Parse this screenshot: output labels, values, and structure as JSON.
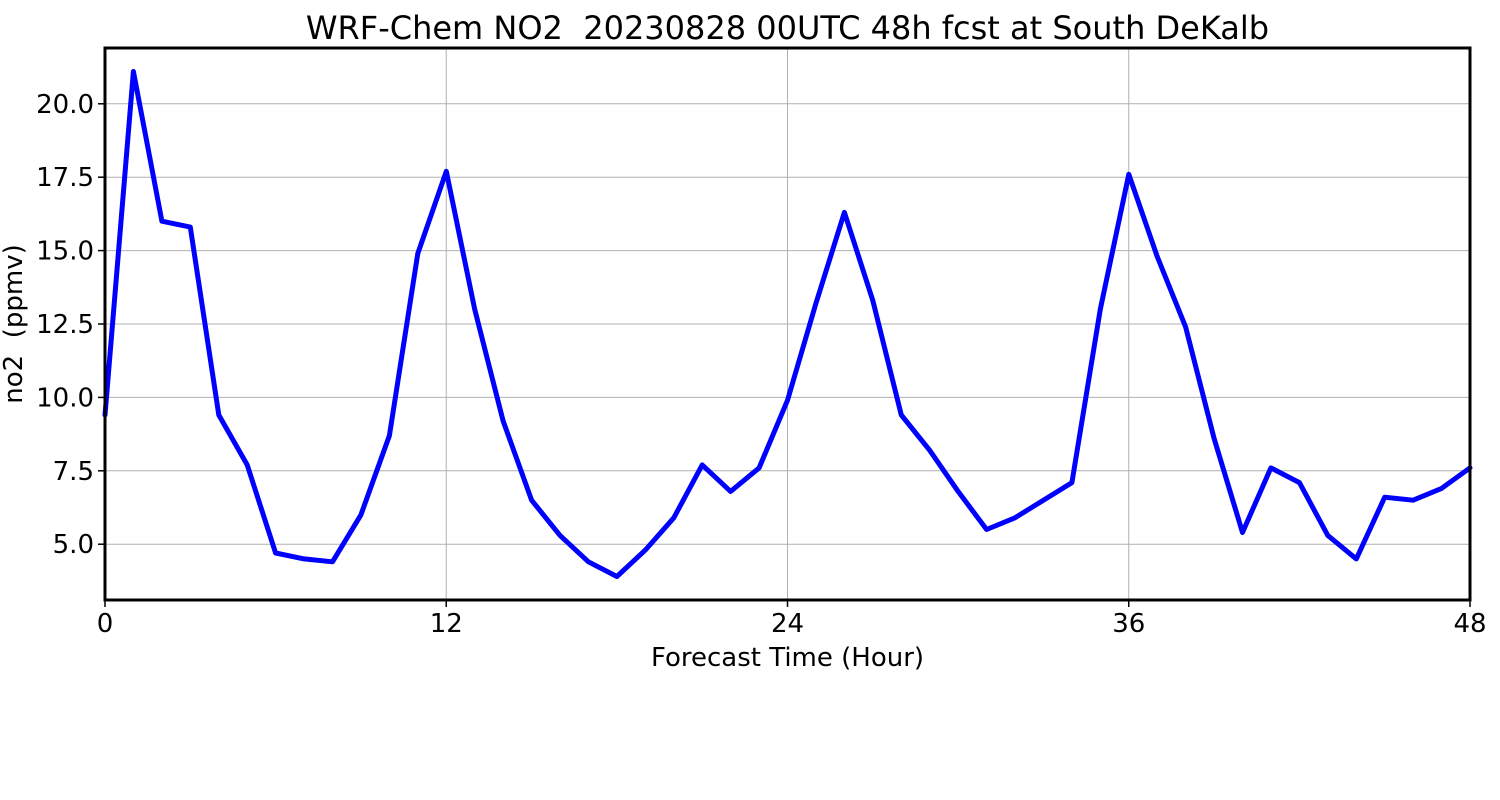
{
  "chart_data": {
    "type": "line",
    "title": "WRF-Chem NO2  20230828 00UTC 48h fcst at South DeKalb",
    "xlabel": "Forecast Time (Hour)",
    "ylabel": "no2  (ppmv)",
    "xlim": [
      0,
      48
    ],
    "ylim": [
      3.1,
      21.9
    ],
    "xticks": [
      0,
      12,
      24,
      36,
      48
    ],
    "xtick_labels": [
      "0",
      "12",
      "24",
      "36",
      "48"
    ],
    "yticks": [
      5.0,
      7.5,
      10.0,
      12.5,
      15.0,
      17.5,
      20.0
    ],
    "ytick_labels": [
      "5.0",
      "7.5",
      "10.0",
      "12.5",
      "15.0",
      "17.5",
      "20.0"
    ],
    "grid": true,
    "series": [
      {
        "color": "#0000ff",
        "x": [
          0,
          1,
          2,
          3,
          4,
          5,
          6,
          7,
          8,
          9,
          10,
          11,
          12,
          13,
          14,
          15,
          16,
          17,
          18,
          19,
          20,
          21,
          22,
          23,
          24,
          25,
          26,
          27,
          28,
          29,
          30,
          31,
          32,
          33,
          34,
          35,
          36,
          37,
          38,
          39,
          40,
          41,
          42,
          43,
          44,
          45,
          46,
          47,
          48
        ],
        "values": [
          9.4,
          21.1,
          16.0,
          15.8,
          9.4,
          7.7,
          4.7,
          4.5,
          4.4,
          6.0,
          8.7,
          14.9,
          17.7,
          13.0,
          9.2,
          6.5,
          5.3,
          4.4,
          3.9,
          4.8,
          5.9,
          7.7,
          6.8,
          7.6,
          9.9,
          13.2,
          16.3,
          13.3,
          9.4,
          8.2,
          6.8,
          5.5,
          5.9,
          6.5,
          7.1,
          13.0,
          17.6,
          14.8,
          12.4,
          8.6,
          5.4,
          7.6,
          7.1,
          5.3,
          4.5,
          6.6,
          6.5,
          6.9,
          7.6
        ]
      }
    ]
  }
}
